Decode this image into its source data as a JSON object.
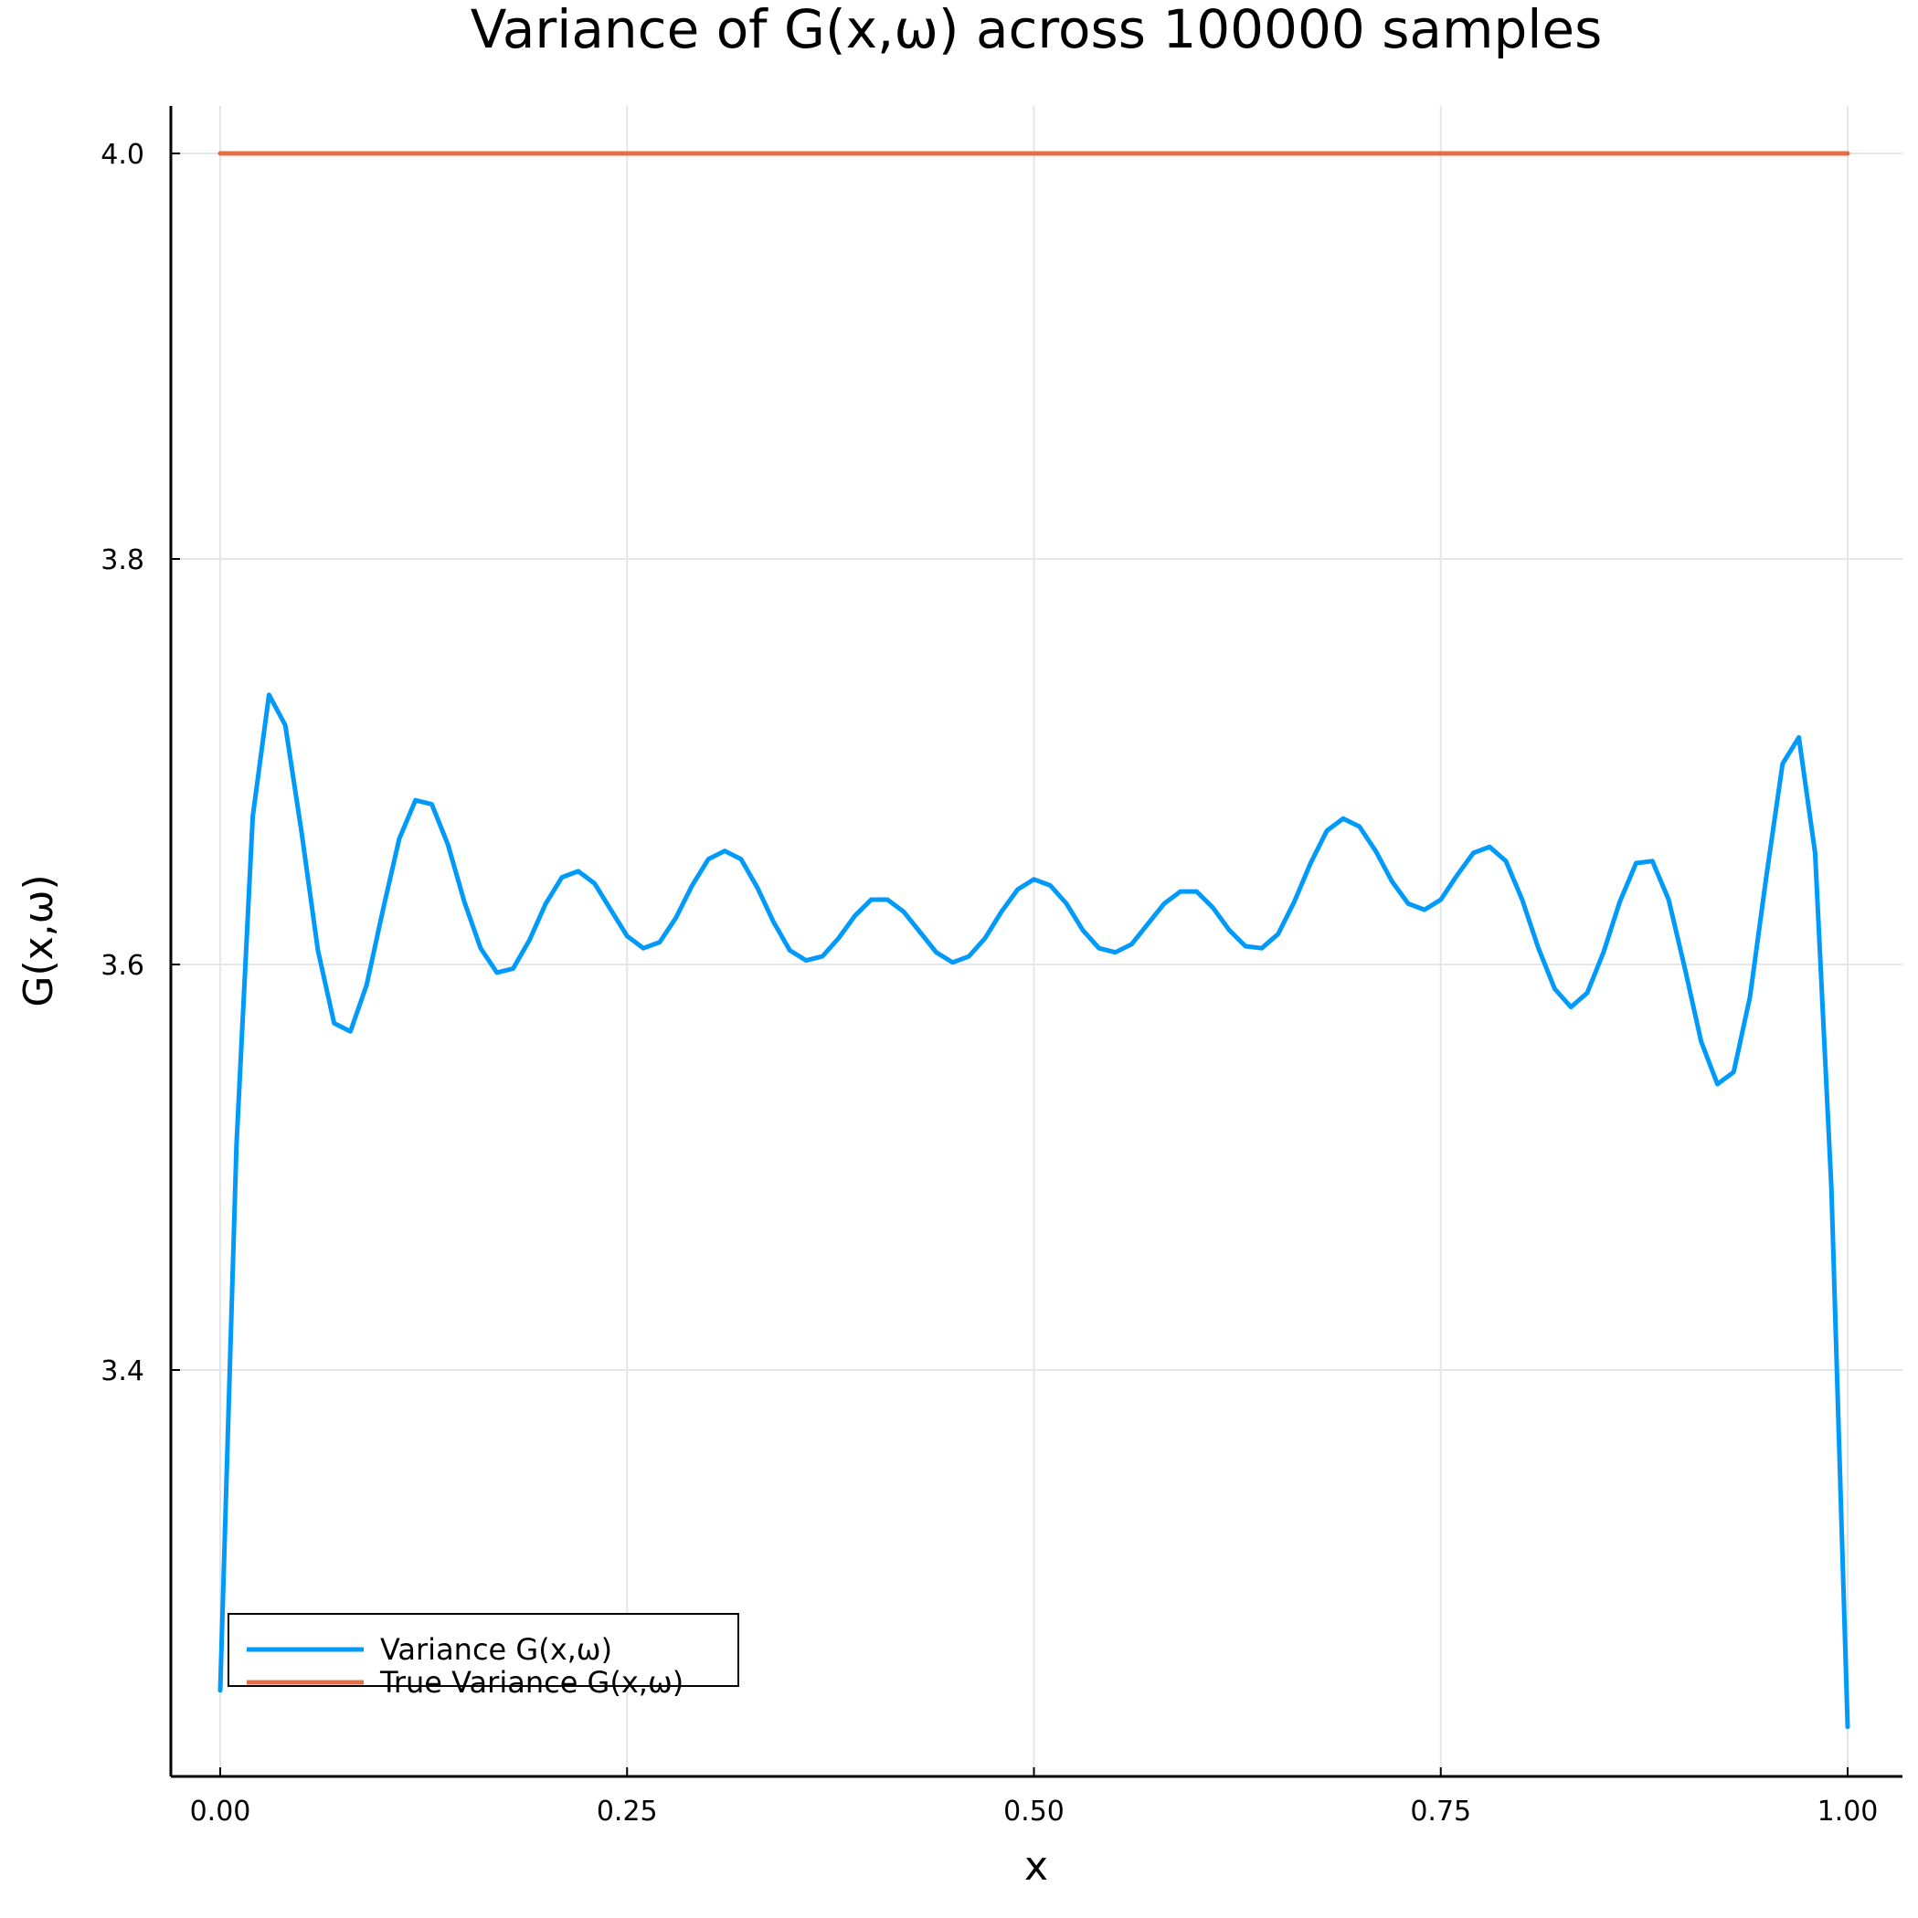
{
  "chart_data": {
    "type": "line",
    "title": "Variance of G(x,ω) across 100000 samples",
    "xlabel": "x",
    "ylabel": "G(x,ω)",
    "xlim": [
      0.0,
      1.0
    ],
    "ylim": [
      3.2,
      4.02
    ],
    "x_ticks": [
      0.0,
      0.25,
      0.5,
      0.75,
      1.0
    ],
    "x_tick_labels": [
      "0.00",
      "0.25",
      "0.50",
      "0.75",
      "1.00"
    ],
    "y_ticks": [
      3.4,
      3.6,
      3.8,
      4.0
    ],
    "y_tick_labels": [
      "3.4",
      "3.6",
      "3.8",
      "4.0"
    ],
    "grid": true,
    "legend_position": "bottom-left",
    "series": [
      {
        "name": "Variance G(x,ω)",
        "color": "#009AFA",
        "x": [
          0.0,
          0.01,
          0.02,
          0.03,
          0.04,
          0.05,
          0.06,
          0.07,
          0.08,
          0.09,
          0.1,
          0.11,
          0.12,
          0.13,
          0.14,
          0.15,
          0.16,
          0.17,
          0.18,
          0.19,
          0.2,
          0.21,
          0.22,
          0.23,
          0.24,
          0.25,
          0.26,
          0.27,
          0.28,
          0.29,
          0.3,
          0.31,
          0.32,
          0.33,
          0.34,
          0.35,
          0.36,
          0.37,
          0.38,
          0.39,
          0.4,
          0.41,
          0.42,
          0.43,
          0.44,
          0.45,
          0.46,
          0.47,
          0.48,
          0.49,
          0.5,
          0.51,
          0.52,
          0.53,
          0.54,
          0.55,
          0.56,
          0.57,
          0.58,
          0.59,
          0.6,
          0.61,
          0.62,
          0.63,
          0.64,
          0.65,
          0.66,
          0.67,
          0.68,
          0.69,
          0.7,
          0.71,
          0.72,
          0.73,
          0.74,
          0.75,
          0.76,
          0.77,
          0.78,
          0.79,
          0.8,
          0.81,
          0.82,
          0.83,
          0.84,
          0.85,
          0.86,
          0.87,
          0.88,
          0.89,
          0.9,
          0.91,
          0.92,
          0.93,
          0.94,
          0.95,
          0.96,
          0.97,
          0.98,
          0.99,
          1.0
        ],
        "y": [
          3.242,
          3.511,
          3.673,
          3.733,
          3.718,
          3.665,
          3.607,
          3.571,
          3.567,
          3.59,
          3.627,
          3.662,
          3.681,
          3.679,
          3.659,
          3.631,
          3.608,
          3.596,
          3.598,
          3.612,
          3.63,
          3.643,
          3.646,
          3.64,
          3.627,
          3.614,
          3.608,
          3.611,
          3.623,
          3.639,
          3.652,
          3.656,
          3.652,
          3.638,
          3.621,
          3.607,
          3.602,
          3.604,
          3.613,
          3.624,
          3.632,
          3.632,
          3.626,
          3.616,
          3.606,
          3.601,
          3.604,
          3.613,
          3.626,
          3.637,
          3.642,
          3.639,
          3.63,
          3.617,
          3.608,
          3.606,
          3.61,
          3.62,
          3.63,
          3.636,
          3.636,
          3.628,
          3.617,
          3.609,
          3.608,
          3.615,
          3.631,
          3.65,
          3.666,
          3.672,
          3.668,
          3.656,
          3.641,
          3.63,
          3.627,
          3.632,
          3.644,
          3.655,
          3.658,
          3.651,
          3.632,
          3.608,
          3.588,
          3.579,
          3.586,
          3.606,
          3.631,
          3.65,
          3.651,
          3.632,
          3.598,
          3.562,
          3.541,
          3.547,
          3.584,
          3.643,
          3.699,
          3.712,
          3.655,
          3.49,
          3.224
        ]
      },
      {
        "name": "True Variance G(x,ω)",
        "color": "#E26F46",
        "x": [
          0.0,
          1.0
        ],
        "y": [
          4.0,
          4.0
        ]
      }
    ]
  }
}
